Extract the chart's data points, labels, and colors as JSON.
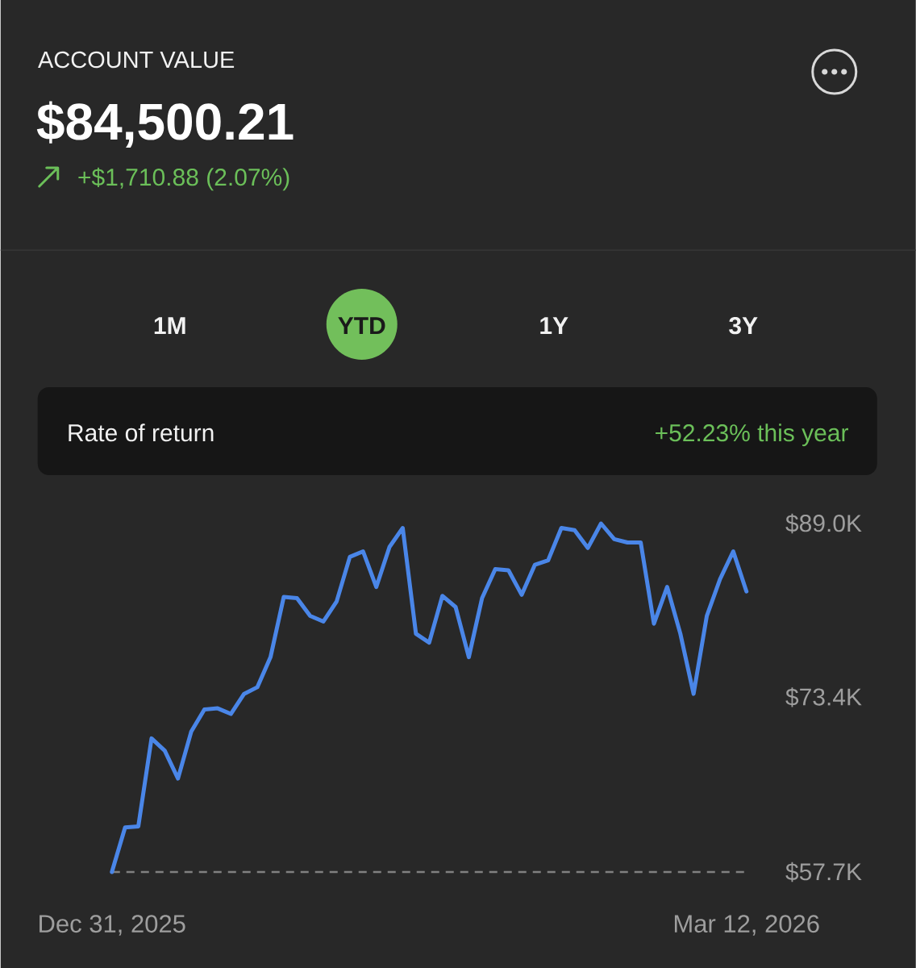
{
  "chart_data": {
    "type": "line",
    "title": "ACCOUNT VALUE",
    "subtitle": "$84,500.21",
    "annotations": [
      "+$1,710.88 (2.07%)",
      "1M",
      "YTD",
      "1Y",
      "3Y",
      "Rate of return",
      "+52.23% this year"
    ],
    "categories": [
      "Dec 31, 2025",
      null,
      null,
      null,
      null,
      null,
      null,
      null,
      null,
      null,
      null,
      null,
      null,
      null,
      null,
      null,
      null,
      null,
      null,
      null,
      null,
      null,
      null,
      null,
      null,
      null,
      null,
      null,
      null,
      null,
      null,
      null,
      null,
      null,
      null,
      null,
      null,
      null,
      null,
      null,
      null,
      null,
      null,
      null,
      null,
      null,
      null,
      null,
      "Mar 12, 2026"
    ],
    "series": [
      {
        "color": "#4a86e8",
        "values": [
          57.7,
          61.7,
          61.8,
          69.7,
          68.6,
          66.1,
          70.3,
          72.3,
          72.4,
          71.9,
          73.7,
          74.3,
          77.0,
          82.4,
          82.3,
          80.7,
          80.2,
          82.0,
          86.0,
          86.5,
          83.3,
          86.9,
          88.6,
          79.1,
          78.3,
          82.5,
          81.5,
          77.0,
          82.3,
          84.9,
          84.8,
          82.6,
          85.3,
          85.7,
          88.6,
          88.4,
          86.8,
          89.0,
          87.6,
          87.3,
          87.3,
          80.0,
          83.3,
          79.1,
          73.7,
          80.7,
          84.0,
          86.5,
          82.9
        ]
      }
    ],
    "ylim": [
      57.7,
      89.0
    ],
    "yticks": [
      {
        "value": 89.0,
        "label": "$89.0K"
      },
      {
        "value": 73.4,
        "label": "$73.4K"
      },
      {
        "value": 57.7,
        "label": "$57.7K"
      }
    ],
    "ref_lines": [
      {
        "axis": "y",
        "value": 57.7,
        "color": "#808080",
        "line_style": "dashed"
      }
    ],
    "line_style": "solid"
  }
}
